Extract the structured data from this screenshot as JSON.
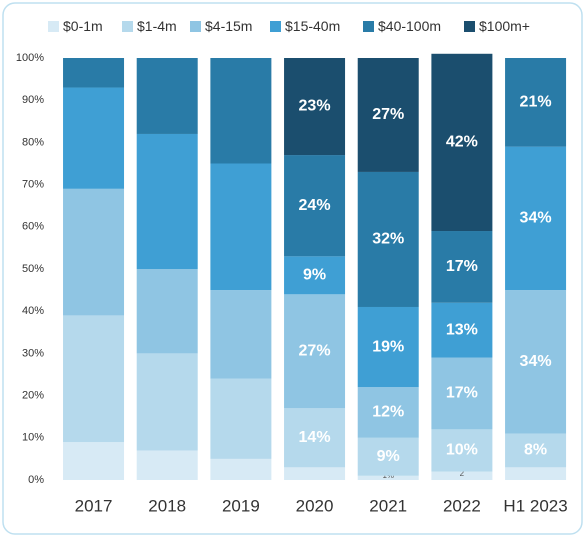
{
  "chart_data": {
    "type": "stacked_bar_100",
    "categories": [
      "2017",
      "2018",
      "2019",
      "2020",
      "2021",
      "2022",
      "H1 2023"
    ],
    "series": [
      {
        "name": "$0-1m",
        "color": "#d7eaf5",
        "values": [
          9,
          7,
          5,
          3,
          1,
          2,
          3
        ],
        "value_labels": [
          null,
          null,
          null,
          null,
          "1%",
          "2",
          null
        ]
      },
      {
        "name": "$1-4m",
        "color": "#b5d9ec",
        "values": [
          30,
          23,
          19,
          14,
          9,
          10,
          8
        ],
        "value_labels": [
          null,
          null,
          null,
          "14%",
          "9%",
          "10%",
          "8%"
        ]
      },
      {
        "name": "$4-15m",
        "color": "#8fc5e3",
        "values": [
          30,
          20,
          21,
          27,
          12,
          17,
          34
        ],
        "value_labels": [
          null,
          null,
          null,
          "27%",
          "12%",
          "17%",
          "34%"
        ]
      },
      {
        "name": "$15-40m",
        "color": "#3f9fd4",
        "values": [
          24,
          32,
          30,
          9,
          19,
          13,
          34
        ],
        "value_labels": [
          null,
          null,
          null,
          "9%",
          "19%",
          "13%",
          "34%"
        ]
      },
      {
        "name": "$40-100m",
        "color": "#297ba7",
        "values": [
          7,
          18,
          25,
          24,
          32,
          17,
          21
        ],
        "value_labels": [
          null,
          null,
          null,
          "24%",
          "32%",
          "17%",
          "21%"
        ]
      },
      {
        "name": "$100m+",
        "color": "#1b4e6e",
        "values": [
          0,
          0,
          0,
          23,
          27,
          42,
          0
        ],
        "value_labels": [
          null,
          null,
          null,
          "23%",
          "27%",
          "42%",
          null
        ]
      }
    ],
    "ylim": [
      0,
      100
    ],
    "yticks": [
      {
        "value": 0,
        "label": "0%"
      },
      {
        "value": 10,
        "label": "10%"
      },
      {
        "value": 20,
        "label": "20%"
      },
      {
        "value": 30,
        "label": "30%"
      },
      {
        "value": 40,
        "label": "40%"
      },
      {
        "value": 50,
        "label": "50%"
      },
      {
        "value": 60,
        "label": "60%"
      },
      {
        "value": 70,
        "label": "70%"
      },
      {
        "value": 80,
        "label": "80%"
      },
      {
        "value": 90,
        "label": "90%"
      },
      {
        "value": 100,
        "label": "100%"
      }
    ]
  }
}
